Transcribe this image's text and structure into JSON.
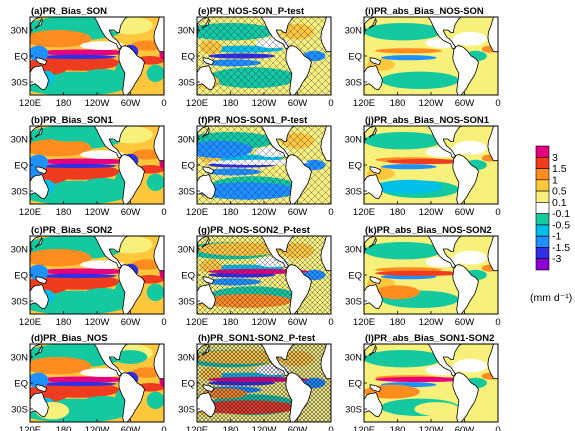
{
  "chart_data": {
    "type": "heatmap",
    "layout": {
      "rows": 4,
      "cols": 3
    },
    "x_ticks": [
      "120E",
      "180",
      "120W",
      "60W",
      "0"
    ],
    "y_ticks": [
      "30N",
      "EQ",
      "30S"
    ],
    "panels": [
      {
        "label": "(a)PR_Bias_SON",
        "kind": "bias",
        "hatch": "none"
      },
      {
        "label": "(e)PR_NOS-SON_P-test",
        "kind": "diff",
        "hatch": "light"
      },
      {
        "label": "(i)PR_abs_Bias_NOS-SON",
        "kind": "absdiff",
        "hatch": "none"
      },
      {
        "label": "(b)PR_Bias_SON1",
        "kind": "bias",
        "hatch": "none"
      },
      {
        "label": "(f)PR_NOS-SON1_P-test",
        "kind": "diff",
        "hatch": "light"
      },
      {
        "label": "(j)PR_abs_Bias_NOS-SON1",
        "kind": "absdiff",
        "hatch": "none"
      },
      {
        "label": "(c)PR_Bias_SON2",
        "kind": "bias",
        "hatch": "none"
      },
      {
        "label": "(g)PR_NOS-SON2_P-test",
        "kind": "diff",
        "hatch": "medium"
      },
      {
        "label": "(k)PR_abs_Bias_NOS-SON2",
        "kind": "absdiff",
        "hatch": "none"
      },
      {
        "label": "(d)PR_Bias_NOS",
        "kind": "bias",
        "hatch": "none"
      },
      {
        "label": "(h)PR_SON1-SON2_P-test",
        "kind": "diff",
        "hatch": "dense"
      },
      {
        "label": "(l)PR_abs_Bias_SON1-SON2",
        "kind": "absdiff",
        "hatch": "none"
      }
    ],
    "colorbar": {
      "levels": [
        "-3",
        "-1.5",
        "-1",
        "-0.5",
        "-0.1",
        "0.1",
        "0.5",
        "1",
        "1.5",
        "3"
      ],
      "colors": [
        "#8a00d6",
        "#3030e6",
        "#1e90ff",
        "#00bfe8",
        "#14c8a0",
        "#ffffff",
        "#f7f07a",
        "#ffc83c",
        "#ff8c1e",
        "#f03c1e",
        "#e6007e"
      ],
      "unit": "(mm d⁻¹)"
    }
  }
}
